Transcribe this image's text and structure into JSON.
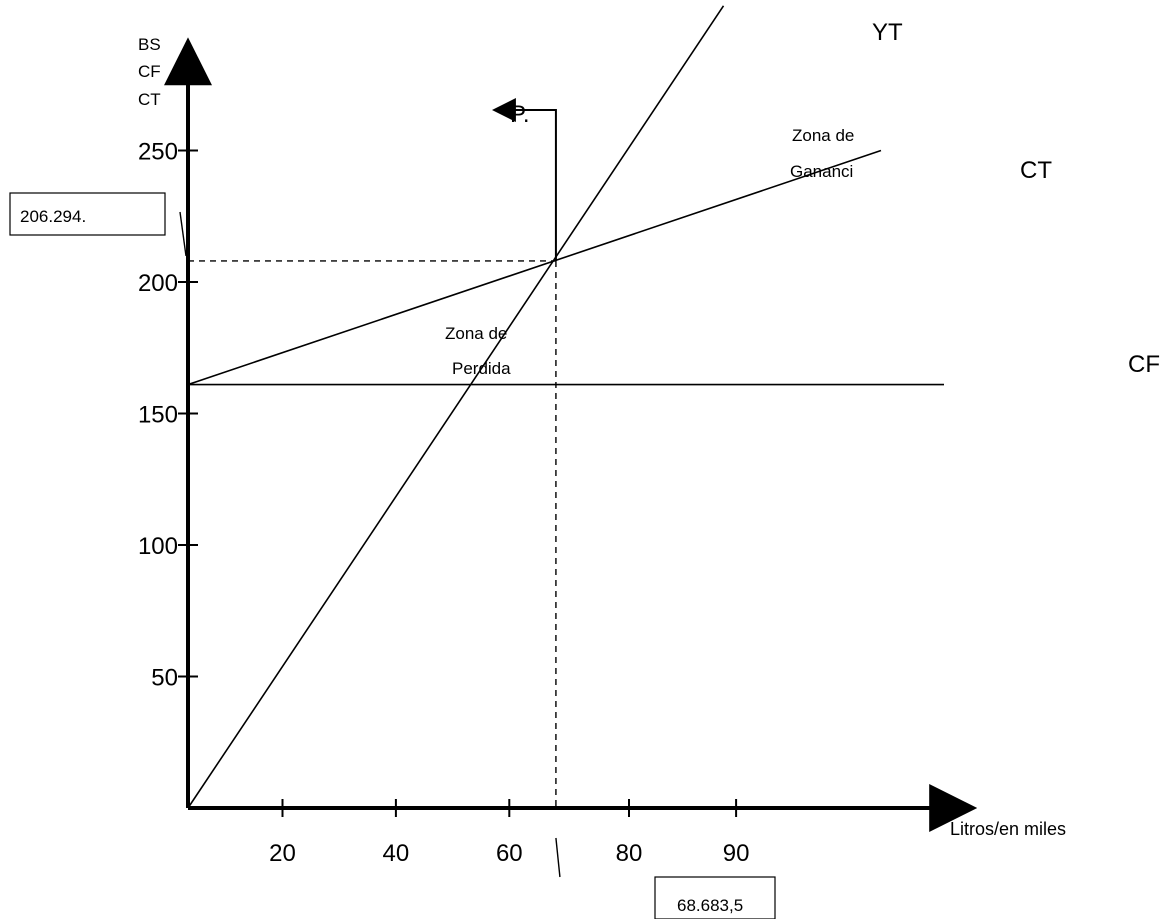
{
  "chart_data": {
    "type": "line",
    "title": "",
    "ylabel_lines": [
      "BS",
      "CF",
      "CT"
    ],
    "xlabel": "Litros/en miles",
    "xticks": [
      {
        "x": 15,
        "label": "20"
      },
      {
        "x": 33,
        "label": "40"
      },
      {
        "x": 51,
        "label": "60"
      },
      {
        "x": 70,
        "label": "80"
      },
      {
        "x": 87,
        "label": "90"
      }
    ],
    "yticks": [
      {
        "y": 50,
        "label": "50"
      },
      {
        "y": 100,
        "label": "100"
      },
      {
        "y": 150,
        "label": "150"
      },
      {
        "y": 200,
        "label": "200"
      },
      {
        "y": 250,
        "label": "250"
      }
    ],
    "xlim": [
      0,
      124
    ],
    "ylim": [
      0,
      290
    ],
    "series": [
      {
        "name": "YT",
        "points": [
          [
            0,
            0
          ],
          [
            85,
            305
          ]
        ]
      },
      {
        "name": "CT",
        "points": [
          [
            0,
            161
          ],
          [
            110,
            250
          ]
        ]
      },
      {
        "name": "CF",
        "points": [
          [
            0,
            161
          ],
          [
            120,
            161
          ]
        ]
      }
    ],
    "break_even": {
      "x": 58.4,
      "y": 208,
      "x_value_label": "68.683,5",
      "y_value_label": "206.294."
    },
    "point_label": "P.",
    "zones": [
      {
        "lines": [
          "Zona de",
          "Perdida"
        ]
      },
      {
        "lines": [
          "Zona de",
          "Gananci"
        ]
      }
    ]
  }
}
